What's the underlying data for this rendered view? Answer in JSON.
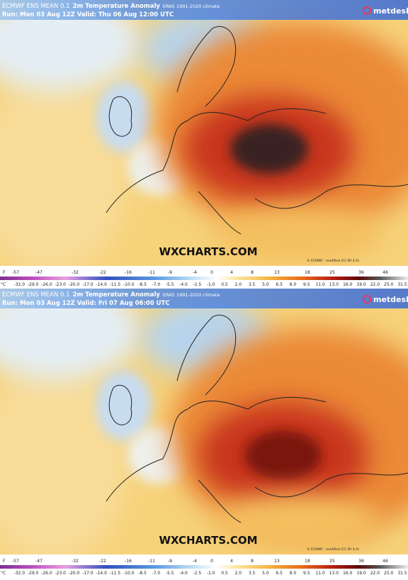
{
  "panels": [
    {
      "header": {
        "model": "ECMWF ENS MEAN 0.1",
        "parameter": "2m Temperature Anomaly",
        "climate": "ERA5 1991-2020 climate",
        "run": "Run: Mon 03 Aug 12Z Valid: Thu 06 Aug 12:00 UTC"
      },
      "logo": "metdesk",
      "watermark": "WXCHARTS.COM",
      "credit": "© ECMWF · modified (CC BY 4.0)"
    },
    {
      "header": {
        "model": "ECMWF ENS MEAN 0.1",
        "parameter": "2m Temperature Anomaly",
        "climate": "ERA5 1991-2020 climate",
        "run": "Run: Mon 03 Aug 12Z Valid: Fri 07 Aug 06:00 UTC"
      },
      "logo": "metdesk",
      "watermark": "WXCHARTS.COM",
      "credit": "© ECMWF · modified (CC BY 4.0)"
    }
  ],
  "legend": {
    "fahrenheit": [
      "F",
      "-57",
      "-47",
      "-32",
      "-22",
      "-16",
      "-11",
      "-9",
      "-4",
      "0",
      "4",
      "8",
      "13",
      "18",
      "25",
      "36",
      "46"
    ],
    "celsius": [
      "°C",
      "-32.0",
      "-29.0",
      "-26.0",
      "-23.0",
      "-20.0",
      "-17.0",
      "-14.0",
      "-11.5",
      "-10.0",
      "-8.5",
      "-7.0",
      "-5.5",
      "-4.0",
      "-2.5",
      "-1.0",
      "0.5",
      "2.0",
      "3.5",
      "5.0",
      "6.5",
      "8.0",
      "9.5",
      "11.0",
      "13.0",
      "16.0",
      "19.0",
      "22.0",
      "25.0",
      "31.5"
    ]
  }
}
